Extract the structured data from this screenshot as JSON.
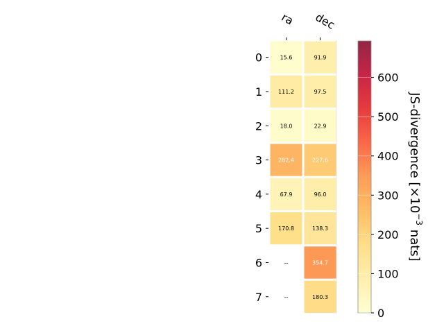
{
  "chart_data": {
    "type": "heatmap",
    "columns": [
      "ra",
      "dec"
    ],
    "rows": [
      "0",
      "1",
      "2",
      "3",
      "4",
      "5",
      "6",
      "7"
    ],
    "values": [
      [
        15.6,
        91.9
      ],
      [
        111.2,
        97.5
      ],
      [
        18.0,
        22.9
      ],
      [
        282.4,
        227.6
      ],
      [
        67.9,
        96.0
      ],
      [
        170.8,
        138.3
      ],
      [
        null,
        354.7
      ],
      [
        null,
        180.3
      ]
    ],
    "labels": [
      [
        "15.6",
        "91.9"
      ],
      [
        "111.2",
        "97.5"
      ],
      [
        "18.0",
        "22.9"
      ],
      [
        "282.4",
        "227.6"
      ],
      [
        "67.9",
        "96.0"
      ],
      [
        "170.8",
        "138.3"
      ],
      [
        "--",
        "354.7"
      ],
      [
        "--",
        "180.3"
      ]
    ],
    "colorbar": {
      "label_main": "JS-divergence [×10",
      "label_exp": "−3",
      "label_unit": " nats]",
      "ticks": [
        "0",
        "100",
        "200",
        "300",
        "400",
        "500",
        "600"
      ],
      "tick_values": [
        0,
        100,
        200,
        300,
        400,
        500,
        600
      ],
      "range": [
        0,
        693
      ],
      "colormap": "YlOrRd"
    }
  }
}
